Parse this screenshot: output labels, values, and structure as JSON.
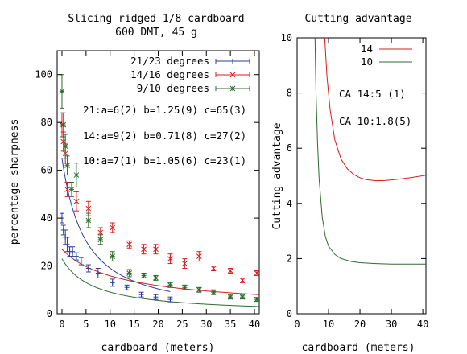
{
  "chart_data": [
    {
      "type": "scatter",
      "title": "Slicing ridged 1/8 cardboard",
      "subtitle": "600 DMT, 45 g",
      "xlabel": "cardboard (meters)",
      "ylabel": "percentage sharpness",
      "xlim": [
        -1,
        41
      ],
      "ylim": [
        0,
        110
      ],
      "xticks": [
        0,
        5,
        10,
        15,
        20,
        25,
        30,
        35,
        40
      ],
      "yticks": [
        0,
        20,
        40,
        60,
        80,
        100
      ],
      "grid": false,
      "legend_position": "top-right",
      "series": [
        {
          "name": "21/23 degrees",
          "color": "#2b3f9c",
          "marker": "plus",
          "points": [
            {
              "x": 0,
              "y": 40,
              "err": 2
            },
            {
              "x": 0.3,
              "y": 35,
              "err": 2
            },
            {
              "x": 0.7,
              "y": 32,
              "err": 3
            },
            {
              "x": 1.1,
              "y": 29,
              "err": 3
            },
            {
              "x": 1.6,
              "y": 26,
              "err": 2
            },
            {
              "x": 2.2,
              "y": 26,
              "err": 2
            },
            {
              "x": 3,
              "y": 24,
              "err": 1.5
            },
            {
              "x": 4,
              "y": 22,
              "err": 1.5
            },
            {
              "x": 5.5,
              "y": 19,
              "err": 1.5
            },
            {
              "x": 7.5,
              "y": 17,
              "err": 2
            },
            {
              "x": 10.5,
              "y": 13,
              "err": 1.5
            },
            {
              "x": 13.5,
              "y": 11,
              "err": 1
            },
            {
              "x": 16.5,
              "y": 8,
              "err": 1
            },
            {
              "x": 19.5,
              "y": 7,
              "err": 1
            },
            {
              "x": 22.5,
              "y": 6,
              "err": 1
            }
          ],
          "fit": {
            "a": 6,
            "b": 1.25,
            "c": 65,
            "x_end": 22.5
          }
        },
        {
          "name": "14/16 degrees",
          "color": "#d81c1c",
          "marker": "cross",
          "points": [
            {
              "x": 0,
              "y": 79,
              "err": 5
            },
            {
              "x": 0.3,
              "y": 72,
              "err": 4
            },
            {
              "x": 0.7,
              "y": 67,
              "err": 4
            },
            {
              "x": 1.1,
              "y": 52,
              "err": 3
            },
            {
              "x": 3,
              "y": 47,
              "err": 4
            },
            {
              "x": 5.5,
              "y": 44,
              "err": 3
            },
            {
              "x": 8,
              "y": 34,
              "err": 2
            },
            {
              "x": 10.5,
              "y": 36,
              "err": 2
            },
            {
              "x": 14,
              "y": 29,
              "err": 1.5
            },
            {
              "x": 17,
              "y": 27,
              "err": 2
            },
            {
              "x": 19.5,
              "y": 27,
              "err": 2
            },
            {
              "x": 22.5,
              "y": 23,
              "err": 2
            },
            {
              "x": 25.5,
              "y": 21,
              "err": 2
            },
            {
              "x": 28.5,
              "y": 24,
              "err": 2
            },
            {
              "x": 31.5,
              "y": 19,
              "err": 1
            },
            {
              "x": 35,
              "y": 18,
              "err": 1
            },
            {
              "x": 37.5,
              "y": 14,
              "err": 1
            },
            {
              "x": 40.5,
              "y": 17,
              "err": 1
            }
          ],
          "fit": {
            "a": 9,
            "b": 0.71,
            "c": 27,
            "x_end": 41
          }
        },
        {
          "name": "9/10 degrees",
          "color": "#2e6b2e",
          "marker": "star",
          "points": [
            {
              "x": 0,
              "y": 93,
              "err": 7
            },
            {
              "x": 0.3,
              "y": 79,
              "err": 5
            },
            {
              "x": 0.7,
              "y": 70,
              "err": 5
            },
            {
              "x": 1.1,
              "y": 62,
              "err": 4
            },
            {
              "x": 2,
              "y": 52,
              "err": 3
            },
            {
              "x": 3,
              "y": 58,
              "err": 5
            },
            {
              "x": 5.5,
              "y": 39,
              "err": 3
            },
            {
              "x": 8,
              "y": 31,
              "err": 2
            },
            {
              "x": 10.5,
              "y": 24,
              "err": 2
            },
            {
              "x": 14,
              "y": 17,
              "err": 1.5
            },
            {
              "x": 17,
              "y": 16,
              "err": 1
            },
            {
              "x": 19.5,
              "y": 15,
              "err": 1
            },
            {
              "x": 22.5,
              "y": 12,
              "err": 1
            },
            {
              "x": 25.5,
              "y": 11,
              "err": 1
            },
            {
              "x": 28.5,
              "y": 10,
              "err": 1
            },
            {
              "x": 31.5,
              "y": 9,
              "err": 1
            },
            {
              "x": 35,
              "y": 7,
              "err": 0.8
            },
            {
              "x": 37.5,
              "y": 7,
              "err": 0.8
            },
            {
              "x": 40.5,
              "y": 6,
              "err": 0.8
            }
          ],
          "fit": {
            "a": 7,
            "b": 1.05,
            "c": 23,
            "x_end": 41
          }
        }
      ],
      "annotations": [
        "21:a=6(2) b=1.25(9) c=65(3)",
        "14:a=9(2) b=0.71(8) c=27(2)",
        "10:a=7(1) b=1.05(6) c=23(1)"
      ]
    },
    {
      "type": "line",
      "title": "Cutting advantage",
      "xlabel": "cardboard (meters)",
      "ylabel": "Cutting advantage",
      "xlim": [
        0,
        41
      ],
      "ylim": [
        0,
        10
      ],
      "xticks": [
        0,
        10,
        20,
        30,
        40
      ],
      "yticks": [
        0,
        2,
        4,
        6,
        8,
        10
      ],
      "grid": false,
      "legend_position": "top-right",
      "series": [
        {
          "name": "14",
          "color": "#d81c1c",
          "x": [
            8.8,
            9.5,
            10.5,
            12,
            14,
            16,
            18,
            20,
            22,
            25,
            28,
            31,
            34,
            37,
            41
          ],
          "y": [
            10,
            8.6,
            7.4,
            6.3,
            5.6,
            5.25,
            5.05,
            4.93,
            4.86,
            4.82,
            4.83,
            4.86,
            4.9,
            4.95,
            5.02
          ]
        },
        {
          "name": "10",
          "color": "#2e6b2e",
          "x": [
            5.7,
            6,
            6.5,
            7,
            8,
            9,
            10,
            12,
            14,
            17,
            20,
            25,
            30,
            35,
            41
          ],
          "y": [
            10,
            8.1,
            6.2,
            4.9,
            3.5,
            2.8,
            2.45,
            2.15,
            2.0,
            1.9,
            1.85,
            1.82,
            1.8,
            1.8,
            1.8
          ]
        }
      ],
      "annotations": [
        "CA 14:5  (1)",
        "CA 10:1.8(5)"
      ]
    }
  ]
}
